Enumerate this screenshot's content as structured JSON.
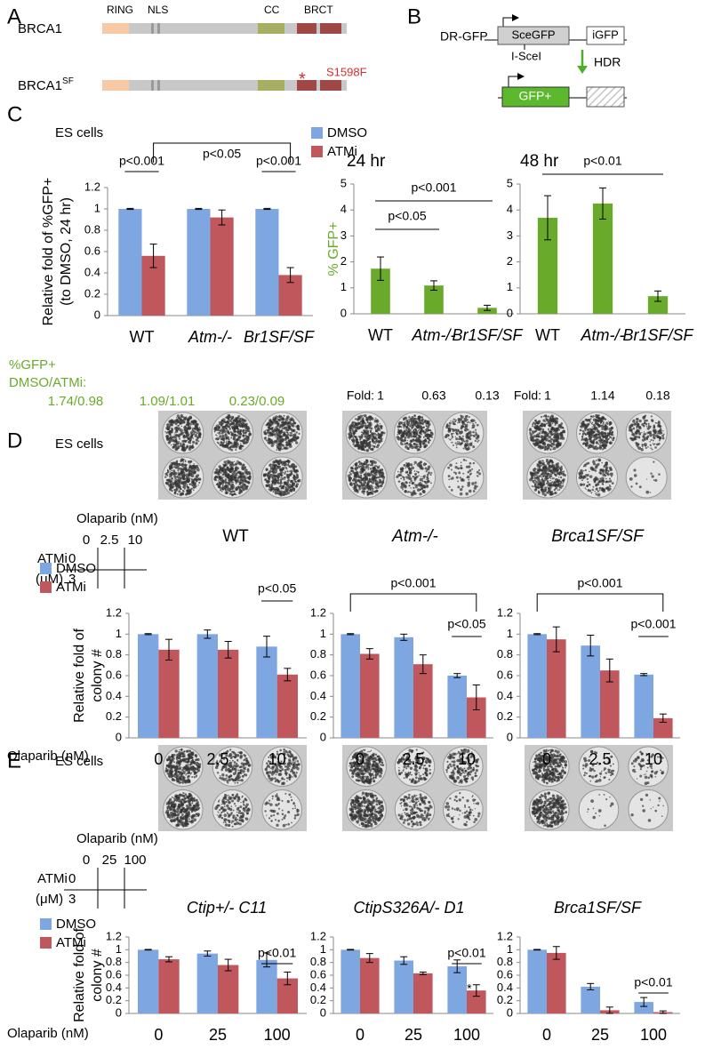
{
  "panel_labels": [
    "A",
    "B",
    "C",
    "D",
    "E"
  ],
  "domains": {
    "proteins": [
      {
        "name": "BRCA1"
      },
      {
        "name": "BRCA1",
        "sup": "SF"
      }
    ],
    "labels": [
      "RING",
      "NLS",
      "CC",
      "BRCT"
    ],
    "mutation": "S1598F",
    "mark": "*"
  },
  "reporter": {
    "name": "DR-GFP",
    "upstream": "SceGFP",
    "downstream": "iGFP",
    "site": "I-SceI",
    "repair": "HDR",
    "product": "GFP+"
  },
  "gfp_summary": {
    "label": [
      "%GFP+",
      "DMSO/ATMi:"
    ],
    "values": [
      "1.74/0.98",
      "1.09/1.01",
      "0.23/0.09"
    ]
  },
  "panel_d": {
    "cell_label": "ES cells",
    "plate_axis": {
      "title": "Olaparib (nM)",
      "columns": [
        "0",
        "2.5",
        "10"
      ],
      "row_title": "ATMi",
      "row_unit": "(μM)",
      "rows": [
        "0",
        "3"
      ]
    },
    "plate_titles": [
      "WT",
      "Atm-/-",
      "Brca1SF/SF"
    ]
  },
  "panel_e": {
    "cell_label": "ES cells",
    "plate_axis": {
      "title": "Olaparib (nM)",
      "columns": [
        "0",
        "25",
        "100"
      ],
      "row_title": "ATMi",
      "row_unit": "(μM)",
      "rows": [
        "0",
        "3"
      ]
    },
    "plate_titles": [
      "Ctip+/- C11",
      "CtipS326A/- D1",
      "Brca1SF/SF"
    ]
  },
  "chart_data": [
    {
      "type": "bar",
      "title": "ES cells",
      "ylabel": [
        "Relative fold of %GFP+",
        "(to DMSO, 24 hr)"
      ],
      "categories": [
        "WT",
        "Atm-/-",
        "Br1SF/SF"
      ],
      "series": [
        {
          "name": "DMSO",
          "color": "#7ea6e0",
          "values": [
            1,
            1,
            1
          ],
          "errors": [
            0.005,
            0.005,
            0.005
          ]
        },
        {
          "name": "ATMi",
          "color": "#c0575d",
          "values": [
            0.56,
            0.92,
            0.38
          ],
          "errors": [
            0.11,
            0.07,
            0.07
          ]
        }
      ],
      "ylim": [
        0,
        1.2
      ],
      "yticks": [
        0,
        0.2,
        0.4,
        0.6,
        0.8,
        1,
        1.2
      ],
      "annotations": [
        "p<0.001",
        "p<0.05",
        "p<0.001"
      ]
    },
    {
      "type": "bar",
      "title": "24 hr",
      "ylabel": [
        "% GFP+"
      ],
      "categories": [
        "WT",
        "Atm-/-",
        "Br1SF/SF"
      ],
      "series": [
        {
          "color": "#6aaa2a",
          "values": [
            1.74,
            1.09,
            0.23
          ],
          "errors": [
            0.45,
            0.18,
            0.1
          ]
        }
      ],
      "ylim": [
        0,
        5
      ],
      "yticks": [
        0,
        1,
        2,
        3,
        4,
        5
      ],
      "annotations": [
        "p<0.05",
        "p<0.001"
      ],
      "fold_label": "Fold:",
      "fold_values": [
        1,
        0.63,
        0.13
      ]
    },
    {
      "type": "bar",
      "title": "48 hr",
      "categories": [
        "WT",
        "Atm-/-",
        "Br1SF/SF"
      ],
      "series": [
        {
          "color": "#6aaa2a",
          "values": [
            3.7,
            4.25,
            0.68
          ],
          "errors": [
            0.85,
            0.6,
            0.2
          ]
        }
      ],
      "ylim": [
        0,
        5
      ],
      "yticks": [
        0,
        1,
        2,
        3,
        4,
        5
      ],
      "annotations": [
        "p<0.01"
      ],
      "fold_label": "Fold:",
      "fold_values": [
        1,
        1.14,
        0.18
      ]
    },
    {
      "type": "bar",
      "ylabel": [
        "Relative fold of",
        "colony #"
      ],
      "x_label": "Olaparib (nM)",
      "categories": [
        "0",
        "2.5",
        "10"
      ],
      "series": [
        {
          "name": "DMSO",
          "color": "#7ea6e0",
          "values": [
            1,
            1,
            0.88
          ],
          "errors": [
            0.005,
            0.04,
            0.1
          ]
        },
        {
          "name": "ATMi",
          "color": "#c0575d",
          "values": [
            0.85,
            0.85,
            0.61
          ],
          "errors": [
            0.1,
            0.08,
            0.06
          ]
        }
      ],
      "ylim": [
        0,
        1.2
      ],
      "yticks": [
        0,
        0.2,
        0.4,
        0.6,
        0.8,
        1,
        1.2
      ],
      "annotations": [
        "p<0.05"
      ]
    },
    {
      "type": "bar",
      "categories": [
        "0",
        "2.5",
        "10"
      ],
      "series": [
        {
          "color": "#7ea6e0",
          "values": [
            1,
            0.97,
            0.6
          ],
          "errors": [
            0.005,
            0.03,
            0.02
          ]
        },
        {
          "color": "#c0575d",
          "values": [
            0.81,
            0.71,
            0.39
          ],
          "errors": [
            0.05,
            0.09,
            0.12
          ]
        }
      ],
      "ylim": [
        0,
        1.2
      ],
      "yticks": [
        0,
        0.2,
        0.4,
        0.6,
        0.8,
        1,
        1.2
      ],
      "annotations": [
        "p<0.001",
        "p<0.05"
      ]
    },
    {
      "type": "bar",
      "categories": [
        "0",
        "2.5",
        "10"
      ],
      "series": [
        {
          "color": "#7ea6e0",
          "values": [
            1,
            0.89,
            0.61
          ],
          "errors": [
            0.005,
            0.1,
            0.01
          ]
        },
        {
          "color": "#c0575d",
          "values": [
            0.95,
            0.65,
            0.19
          ],
          "errors": [
            0.12,
            0.11,
            0.04
          ]
        }
      ],
      "ylim": [
        0,
        1.2
      ],
      "yticks": [
        0,
        0.2,
        0.4,
        0.6,
        0.8,
        1,
        1.2
      ],
      "annotations": [
        "p<0.001",
        "p<0.001"
      ]
    },
    {
      "type": "bar",
      "ylabel": [
        "Relative fold of",
        "colony #"
      ],
      "x_label": "Olaparib (nM)",
      "categories": [
        "0",
        "25",
        "100"
      ],
      "series": [
        {
          "name": "DMSO",
          "color": "#7ea6e0",
          "values": [
            1,
            0.94,
            0.84
          ],
          "errors": [
            0.005,
            0.04,
            0.11
          ]
        },
        {
          "name": "ATMi",
          "color": "#c0575d",
          "values": [
            0.85,
            0.76,
            0.55
          ],
          "errors": [
            0.04,
            0.09,
            0.1
          ]
        }
      ],
      "ylim": [
        0,
        1.2
      ],
      "yticks": [
        0,
        0.2,
        0.4,
        0.6,
        0.8,
        1,
        1.2
      ],
      "annotations": [
        "p<0.01"
      ]
    },
    {
      "type": "bar",
      "categories": [
        "0",
        "25",
        "100"
      ],
      "series": [
        {
          "color": "#7ea6e0",
          "values": [
            1,
            0.83,
            0.74
          ],
          "errors": [
            0.005,
            0.06,
            0.1
          ]
        },
        {
          "color": "#c0575d",
          "values": [
            0.87,
            0.63,
            0.36
          ],
          "errors": [
            0.07,
            0.02,
            0.09
          ]
        }
      ],
      "ylim": [
        0,
        1.2
      ],
      "yticks": [
        0,
        0.2,
        0.4,
        0.6,
        0.8,
        1,
        1.2
      ],
      "annotations": [
        "p<0.01",
        "*"
      ]
    },
    {
      "type": "bar",
      "categories": [
        "0",
        "25",
        "100"
      ],
      "series": [
        {
          "color": "#7ea6e0",
          "values": [
            1,
            0.42,
            0.18
          ],
          "errors": [
            0.005,
            0.05,
            0.07
          ]
        },
        {
          "color": "#c0575d",
          "values": [
            0.95,
            0.05,
            0.02
          ],
          "errors": [
            0.1,
            0.05,
            0.02
          ]
        }
      ],
      "ylim": [
        0,
        1.2
      ],
      "yticks": [
        0,
        0.2,
        0.4,
        0.6,
        0.8,
        1,
        1.2
      ],
      "annotations": [
        "p<0.01"
      ]
    }
  ]
}
